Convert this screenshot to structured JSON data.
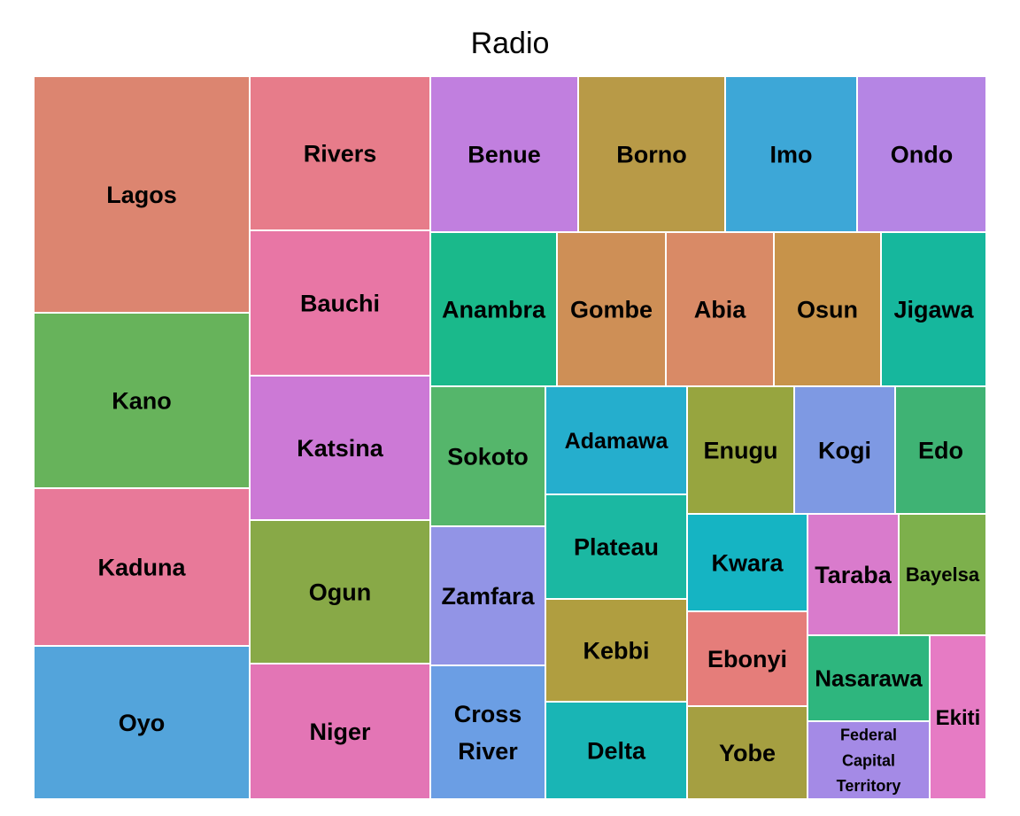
{
  "chart_data": {
    "type": "treemap",
    "title": "Radio",
    "tiles": [
      {
        "name": "Lagos",
        "color": "#DC8570"
      },
      {
        "name": "Kano",
        "color": "#67B35B"
      },
      {
        "name": "Kaduna",
        "color": "#E87999"
      },
      {
        "name": "Oyo",
        "color": "#53A4DB"
      },
      {
        "name": "Rivers",
        "color": "#E77C8A"
      },
      {
        "name": "Bauchi",
        "color": "#E876A5"
      },
      {
        "name": "Katsina",
        "color": "#CC79D6"
      },
      {
        "name": "Ogun",
        "color": "#88A947"
      },
      {
        "name": "Niger",
        "color": "#E375B5"
      },
      {
        "name": "Benue",
        "color": "#C17FDF"
      },
      {
        "name": "Borno",
        "color": "#B89A47"
      },
      {
        "name": "Imo",
        "color": "#3DA7D7"
      },
      {
        "name": "Ondo",
        "color": "#B585E4"
      },
      {
        "name": "Anambra",
        "color": "#1AB98B"
      },
      {
        "name": "Gombe",
        "color": "#CE8F56"
      },
      {
        "name": "Abia",
        "color": "#D98A66"
      },
      {
        "name": "Osun",
        "color": "#C7934A"
      },
      {
        "name": "Jigawa",
        "color": "#16B79D"
      },
      {
        "name": "Sokoto",
        "color": "#55B66B"
      },
      {
        "name": "Adamawa",
        "color": "#25AECD"
      },
      {
        "name": "Enugu",
        "color": "#97A53F"
      },
      {
        "name": "Kogi",
        "color": "#7E99E3"
      },
      {
        "name": "Edo",
        "color": "#3FB374"
      },
      {
        "name": "Plateau",
        "color": "#1BB8A2"
      },
      {
        "name": "Kwara",
        "color": "#15B4C3"
      },
      {
        "name": "Taraba",
        "color": "#D97BCC"
      },
      {
        "name": "Bayelsa",
        "color": "#7DB04C"
      },
      {
        "name": "Zamfara",
        "color": "#9294E6"
      },
      {
        "name": "Kebbi",
        "color": "#B09E40"
      },
      {
        "name": "Ebonyi",
        "color": "#E57D7A"
      },
      {
        "name": "Nasarawa",
        "color": "#2EB67E"
      },
      {
        "name": "Ekiti",
        "color": "#E67BC4"
      },
      {
        "name": "Cross River",
        "color": "#6B9EE4"
      },
      {
        "name": "Delta",
        "color": "#19B5B5"
      },
      {
        "name": "Yobe",
        "color": "#A59F41"
      },
      {
        "name": "Federal Capital Territory",
        "color": "#A48AE6"
      }
    ]
  }
}
